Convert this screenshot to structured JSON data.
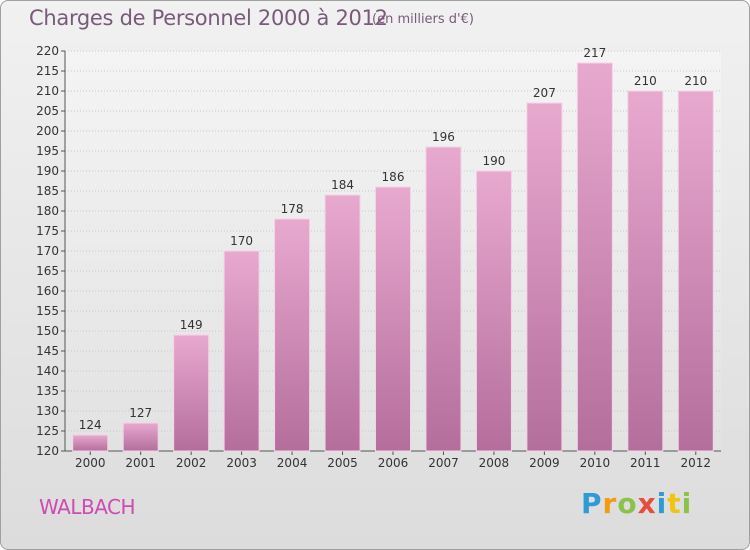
{
  "title": "Charges de Personnel 2000 à 2012",
  "subtitle": "(en milliers d'€)",
  "location": "WALBACH",
  "logo": {
    "letters": [
      "P",
      "r",
      "o",
      "x",
      "i",
      "t",
      "i"
    ],
    "colors": [
      "#2e9ad6",
      "#f39c12",
      "#8bc34a",
      "#e74c3c",
      "#2e9ad6",
      "#f1c40f",
      "#8bc34a"
    ]
  },
  "colors": {
    "bar_top": "#e8a9cf",
    "bar_bottom": "#b46e9c",
    "title": "#7a5a7a",
    "location": "#d04ab2"
  },
  "chart_data": {
    "type": "bar",
    "title": "Charges de Personnel 2000 à 2012",
    "subtitle": "(en milliers d'€)",
    "xlabel": "",
    "ylabel": "",
    "categories": [
      "2000",
      "2001",
      "2002",
      "2003",
      "2004",
      "2005",
      "2006",
      "2007",
      "2008",
      "2009",
      "2010",
      "2011",
      "2012"
    ],
    "values": [
      124,
      127,
      149,
      170,
      178,
      184,
      186,
      196,
      190,
      207,
      217,
      210,
      210
    ],
    "ylim": [
      120,
      220
    ],
    "yticks": [
      120,
      125,
      130,
      135,
      140,
      145,
      150,
      155,
      160,
      165,
      170,
      175,
      180,
      185,
      190,
      195,
      200,
      205,
      210,
      215,
      220
    ],
    "grid": true
  }
}
